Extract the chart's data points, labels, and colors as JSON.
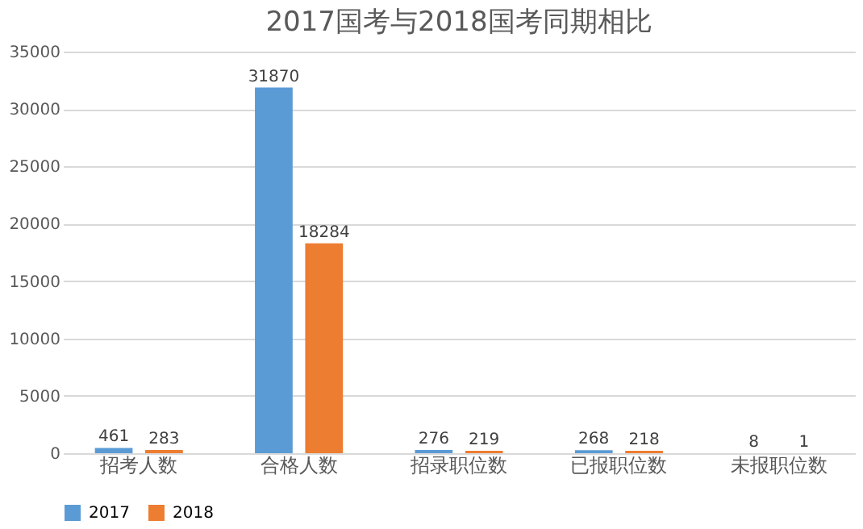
{
  "chart_data": {
    "type": "bar",
    "title": "2017国考与2018国考同期相比",
    "categories": [
      "招考人数",
      "合格人数",
      "招录职位数",
      "已报职位数",
      "未报职位数"
    ],
    "series": [
      {
        "name": "2017",
        "color": "#5b9bd5",
        "values": [
          461,
          31870,
          276,
          268,
          8
        ]
      },
      {
        "name": "2018",
        "color": "#ed7d31",
        "values": [
          283,
          18284,
          219,
          218,
          1
        ]
      }
    ],
    "ylim": [
      0,
      35000
    ],
    "yticks": [
      0,
      5000,
      10000,
      15000,
      20000,
      25000,
      30000,
      35000
    ],
    "grid": "y",
    "legend": "bottom",
    "data_labels": true
  }
}
